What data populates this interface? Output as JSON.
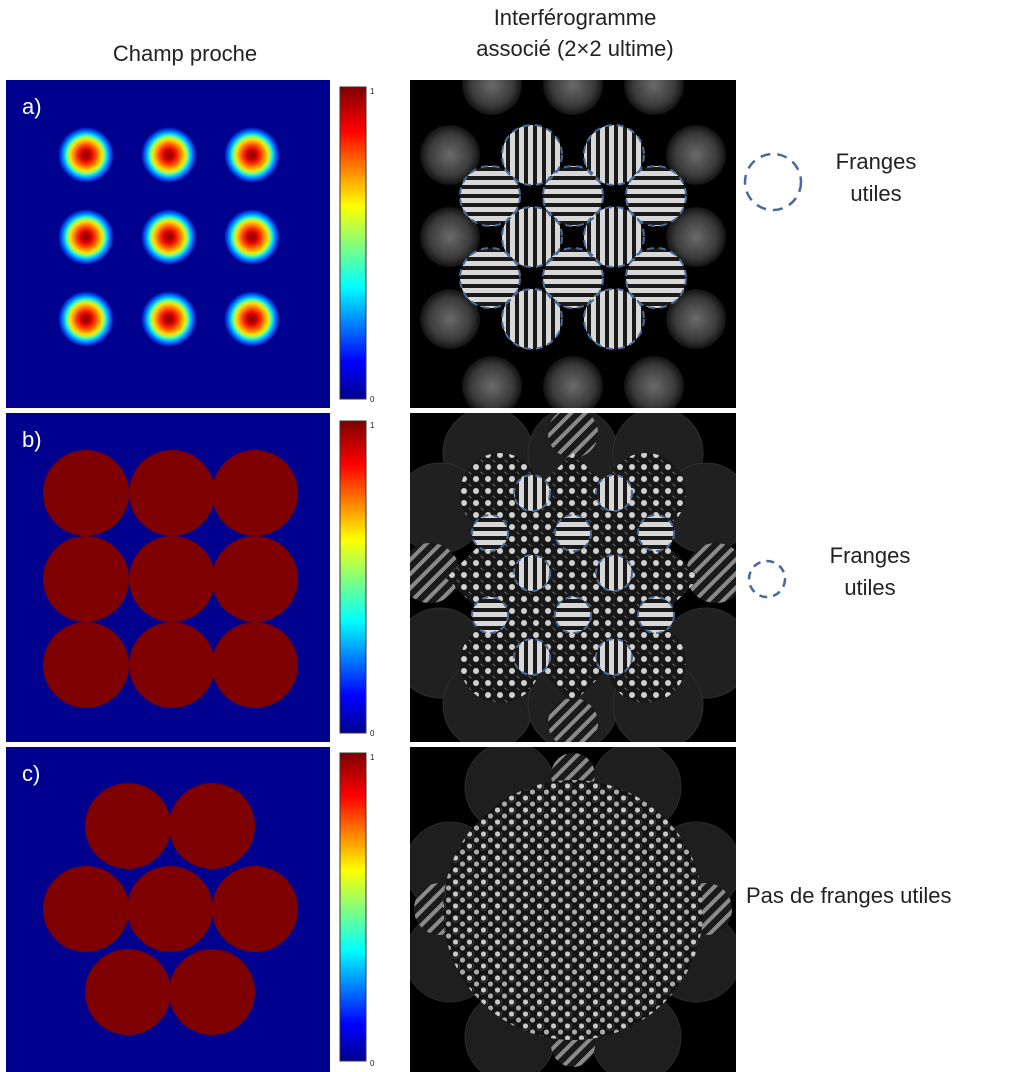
{
  "headers": {
    "left": "Champ proche",
    "right_line1": "Interférogramme",
    "right_line2": "associé (2×2 ultime)"
  },
  "rows": [
    {
      "label": "a)",
      "note": {
        "line1": "Franges",
        "line2": "utiles"
      }
    },
    {
      "label": "b)",
      "note": {
        "line1": "Franges",
        "line2": "utiles"
      }
    },
    {
      "label": "c)",
      "note": {
        "line1": "Pas de franges utiles"
      }
    }
  ],
  "colorbar": {
    "max_label": "1",
    "min_label": "0"
  },
  "colors": {
    "near_field_background": "#00008f",
    "near_field_aperture": "#7f0000",
    "interferogram_background": "#000000",
    "useful_fringe_marker": "#4a6a9a"
  },
  "icons": {
    "useful_fringe_marker": "dashed-circle-icon"
  }
}
